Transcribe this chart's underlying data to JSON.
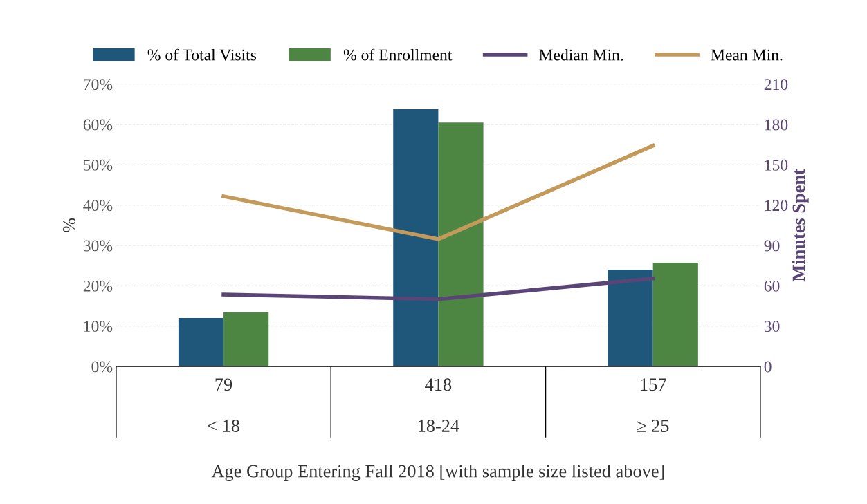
{
  "chart_data": {
    "type": "bar",
    "xlabel": "Age Group Entering Fall 2018 [with sample size listed above]",
    "ylabel": "%",
    "y2label": "Minutes Spent",
    "categories": [
      "< 18",
      "18-24",
      "≥ 25"
    ],
    "series": [
      {
        "name": "% of Total Visits",
        "color": "#1f577b",
        "values": [
          12.0,
          63.8,
          24.0
        ]
      },
      {
        "name": "% of Enrollment",
        "color": "#4d8642",
        "values": [
          13.4,
          60.5,
          25.7
        ]
      },
      {
        "name": "Median Min.",
        "type": "line",
        "axis": "y2",
        "color": "#5b4577",
        "values": [
          53.5,
          50,
          65.4
        ]
      },
      {
        "name": "Mean Min.",
        "type": "line",
        "axis": "y2",
        "color": "#c49a5a",
        "values": [
          126.6,
          94.7,
          164.2
        ]
      }
    ],
    "annotations": [
      "79",
      "418",
      "157"
    ],
    "ylim": [
      0,
      70
    ],
    "yticks": [
      {
        "value": 0,
        "label": "0%"
      },
      {
        "value": 10,
        "label": "10%"
      },
      {
        "value": 20,
        "label": "20%"
      },
      {
        "value": 30,
        "label": "30%"
      },
      {
        "value": 40,
        "label": "40%"
      },
      {
        "value": 50,
        "label": "50%"
      },
      {
        "value": 60,
        "label": "60%"
      },
      {
        "value": 70,
        "label": "70%"
      }
    ],
    "y2lim": [
      0,
      210
    ],
    "y2ticks": [
      0,
      30,
      60,
      90,
      120,
      150,
      180,
      210
    ],
    "grid": "y",
    "legend": "top",
    "marker": "none",
    "line_style": "solid"
  }
}
